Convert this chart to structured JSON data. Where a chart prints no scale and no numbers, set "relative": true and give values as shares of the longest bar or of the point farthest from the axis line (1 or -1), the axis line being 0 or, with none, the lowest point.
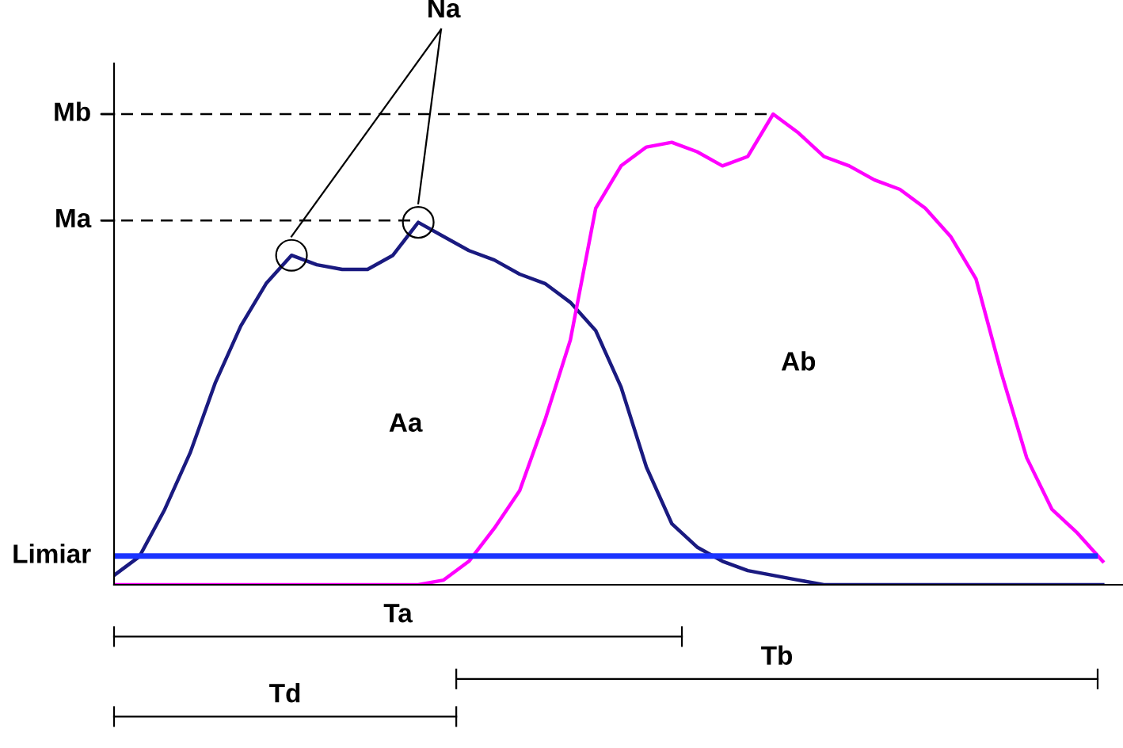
{
  "chart_data": {
    "type": "line",
    "relative": true,
    "categories": [
      null,
      null,
      null,
      null,
      null,
      null,
      null,
      null,
      null,
      null,
      null,
      null,
      null,
      null,
      null,
      null,
      null,
      null,
      null,
      null,
      null,
      null,
      null,
      null,
      null,
      null,
      null,
      null,
      null,
      null,
      null,
      null,
      null,
      null,
      null,
      null,
      null,
      null,
      null,
      null
    ],
    "series": [
      {
        "color": "#1a1a80",
        "values": [
          0.02,
          0.06,
          0.16,
          0.28,
          0.43,
          0.55,
          0.64,
          0.7,
          0.68,
          0.67,
          0.67,
          0.7,
          0.77,
          0.74,
          0.71,
          0.69,
          0.66,
          0.64,
          0.6,
          0.54,
          0.42,
          0.25,
          0.13,
          0.08,
          0.05,
          0.03,
          0.02,
          0.01,
          0,
          0,
          0,
          0,
          0,
          0,
          0,
          0,
          0,
          0,
          0,
          0
        ]
      },
      {
        "color": "#ff00ff",
        "values": [
          0,
          0,
          0,
          0,
          0,
          0,
          0,
          0,
          0,
          0,
          0,
          0,
          0,
          0.01,
          0.05,
          0.12,
          0.2,
          0.35,
          0.52,
          0.8,
          0.89,
          0.93,
          0.94,
          0.92,
          0.89,
          0.91,
          1.0,
          0.96,
          0.91,
          0.89,
          0.86,
          0.84,
          0.8,
          0.74,
          0.65,
          0.45,
          0.27,
          0.16,
          0.11,
          0.05
        ]
      }
    ],
    "ref_lines": [
      {
        "axis": "y",
        "value": 1.0,
        "label": "Mb",
        "line_style": "dashed",
        "color": "#000000"
      },
      {
        "axis": "y",
        "value": 0.774,
        "label": "Ma",
        "line_style": "dashed",
        "color": "#000000"
      },
      {
        "axis": "y",
        "value": 0.061,
        "label": "Limiar",
        "line_style": "solid",
        "color": "#1a33ff"
      }
    ],
    "annotations": [
      "Na",
      "Aa",
      "Ab",
      "Ta",
      "Tb",
      "Td"
    ],
    "grid": false,
    "legend": false
  }
}
